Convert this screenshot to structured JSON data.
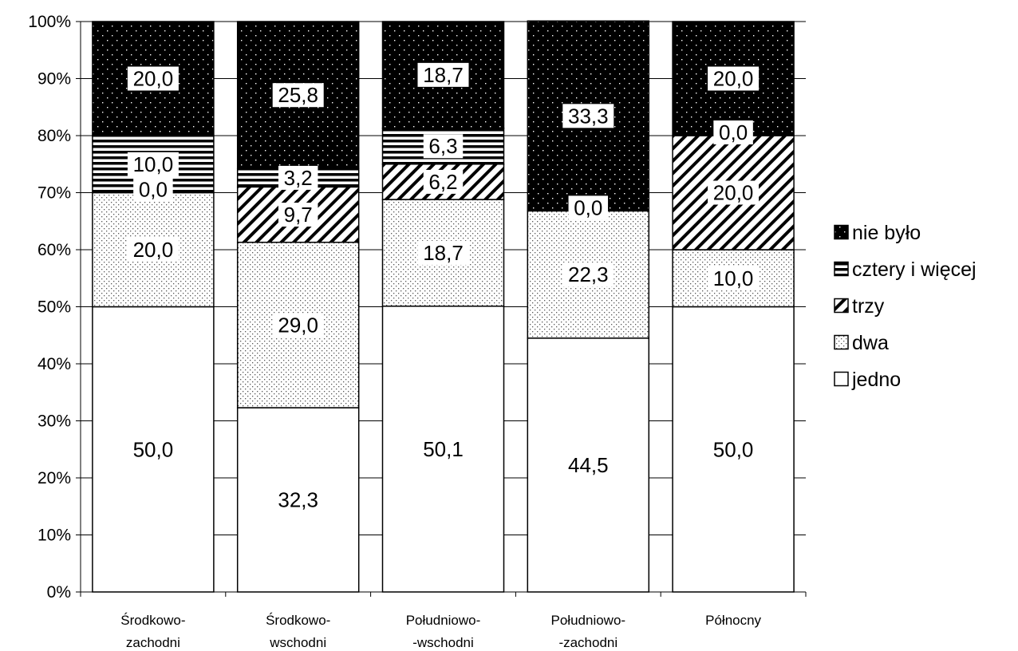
{
  "chart_data": {
    "type": "bar",
    "stacked": true,
    "normalized": true,
    "categories": [
      [
        "Środkowo-",
        "zachodni"
      ],
      [
        "Środkowo-",
        "wschodni"
      ],
      [
        "Południowo-",
        "-wschodni"
      ],
      [
        "Południowo-",
        "-zachodni"
      ],
      [
        "Północny"
      ]
    ],
    "series": [
      {
        "name": "jedno",
        "pattern": "white",
        "values": [
          50.0,
          32.3,
          50.1,
          44.5,
          50.0
        ],
        "labels": [
          "50,0",
          "32,3",
          "50,1",
          "44,5",
          "50,0"
        ]
      },
      {
        "name": "dwa",
        "pattern": "dots",
        "values": [
          20.0,
          29.0,
          18.7,
          22.3,
          10.0
        ],
        "labels": [
          "20,0",
          "29,0",
          "18,7",
          "22,3",
          "10,0"
        ]
      },
      {
        "name": "trzy",
        "pattern": "diagonal",
        "values": [
          0.0,
          9.7,
          6.2,
          0.0,
          20.0
        ],
        "labels": [
          "0,0",
          "9,7",
          "6,2",
          "0,0",
          "20,0"
        ]
      },
      {
        "name": "cztery i więcej",
        "pattern": "horizontal",
        "values": [
          10.0,
          3.2,
          6.3,
          0.0,
          0.0
        ],
        "labels": [
          "10,0",
          "3,2",
          "6,3",
          "",
          "0,0"
        ]
      },
      {
        "name": "nie było",
        "pattern": "black-dots",
        "values": [
          20.0,
          25.8,
          18.7,
          33.3,
          20.0
        ],
        "labels": [
          "20,0",
          "25,8",
          "18,7",
          "33,3",
          "20,0"
        ]
      }
    ],
    "y_ticks": [
      "0%",
      "10%",
      "20%",
      "30%",
      "40%",
      "50%",
      "60%",
      "70%",
      "80%",
      "90%",
      "100%"
    ],
    "ylim": [
      0,
      100
    ],
    "grid": true,
    "legend_position": "right",
    "legend_order": [
      "nie było",
      "cztery i więcej",
      "trzy",
      "dwa",
      "jedno"
    ]
  }
}
